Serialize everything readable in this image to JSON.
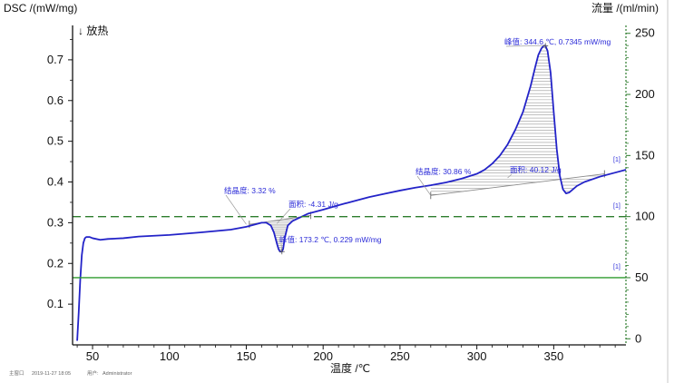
{
  "chart_data": {
    "type": "line",
    "title": "",
    "ylabel": "DSC /(mW/mg)",
    "y2label": "流量 /(ml/min)",
    "xlabel": "温度 /℃",
    "direction_note": "↓ 放热",
    "xlim": [
      37,
      397
    ],
    "ylim": [
      0,
      0.78
    ],
    "y2lim": [
      -5,
      255
    ],
    "x_ticks": [
      50,
      100,
      150,
      200,
      250,
      300,
      350
    ],
    "y_ticks": [
      0.1,
      0.2,
      0.3,
      0.4,
      0.5,
      0.6,
      0.7
    ],
    "y2_ticks": [
      0,
      50,
      100,
      150,
      200,
      250
    ],
    "grid": false,
    "series": [
      {
        "axis": "left",
        "color": "#2323c8",
        "x": [
          40,
          41,
          42,
          43,
          44,
          45,
          46,
          48,
          50,
          55,
          60,
          70,
          80,
          100,
          120,
          140,
          150,
          155,
          160,
          163,
          166,
          168,
          170,
          171,
          172,
          173.2,
          174,
          175,
          177,
          180,
          185,
          190,
          200,
          210,
          220,
          230,
          240,
          250,
          260,
          270,
          280,
          290,
          300,
          305,
          310,
          315,
          320,
          325,
          330,
          335,
          338,
          340,
          342,
          343.5,
          344.6,
          346,
          348,
          350,
          352,
          354,
          356,
          358,
          360,
          365,
          370,
          380,
          390,
          397
        ],
        "y": [
          0.01,
          0.08,
          0.16,
          0.22,
          0.25,
          0.262,
          0.265,
          0.265,
          0.262,
          0.258,
          0.26,
          0.262,
          0.266,
          0.27,
          0.276,
          0.283,
          0.29,
          0.295,
          0.3,
          0.3,
          0.293,
          0.276,
          0.248,
          0.235,
          0.229,
          0.229,
          0.236,
          0.262,
          0.293,
          0.304,
          0.313,
          0.322,
          0.332,
          0.343,
          0.353,
          0.363,
          0.371,
          0.379,
          0.386,
          0.392,
          0.399,
          0.408,
          0.42,
          0.43,
          0.445,
          0.465,
          0.492,
          0.528,
          0.572,
          0.636,
          0.683,
          0.712,
          0.728,
          0.7345,
          0.7345,
          0.722,
          0.668,
          0.572,
          0.48,
          0.415,
          0.382,
          0.372,
          0.374,
          0.39,
          0.4,
          0.413,
          0.423,
          0.43
        ]
      },
      {
        "axis": "right",
        "color": "#2e7d2e",
        "dash": "dashed",
        "x": [
          37,
          397
        ],
        "y": [
          100,
          100
        ]
      },
      {
        "axis": "right",
        "color": "#2e9b2e",
        "x": [
          37,
          397
        ],
        "y": [
          50,
          50
        ]
      }
    ],
    "annotations": [
      {
        "label": "峰值: 344.6 ℃, 0.7345 mW/mg",
        "x": 344.6,
        "y": 0.7345
      },
      {
        "label": "峰值: 173.2 ℃, 0.229 mW/mg",
        "x": 173.2,
        "y": 0.229
      },
      {
        "label": "面积: -4.31 J/g",
        "x": 170,
        "y": 0.298
      },
      {
        "label": "面积: 40.12 J/g",
        "x": 320,
        "y": 0.41
      },
      {
        "label": "结晶度: 3.32 %",
        "x": 150,
        "y": 0.296
      },
      {
        "label": "结晶度: 30.86 %",
        "x": 270,
        "y": 0.367
      }
    ],
    "baselines": [
      {
        "x": [
          152,
          192
        ],
        "y": [
          0.296,
          0.318
        ]
      },
      {
        "x": [
          270,
          383
        ],
        "y": [
          0.367,
          0.42
        ]
      }
    ],
    "flags": [
      "[1]",
      "[1]",
      "[1]"
    ],
    "footer": {
      "label1": "主窗口",
      "datetime": "2019-11-27 18:05",
      "label2": "用户:",
      "user": "Administrator"
    }
  }
}
